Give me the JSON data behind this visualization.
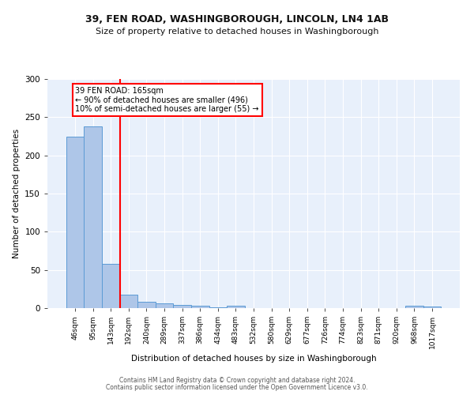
{
  "title1": "39, FEN ROAD, WASHINGBOROUGH, LINCOLN, LN4 1AB",
  "title2": "Size of property relative to detached houses in Washingborough",
  "xlabel": "Distribution of detached houses by size in Washingborough",
  "ylabel": "Number of detached properties",
  "bin_labels": [
    "46sqm",
    "95sqm",
    "143sqm",
    "192sqm",
    "240sqm",
    "289sqm",
    "337sqm",
    "386sqm",
    "434sqm",
    "483sqm",
    "532sqm",
    "580sqm",
    "629sqm",
    "677sqm",
    "726sqm",
    "774sqm",
    "823sqm",
    "871sqm",
    "920sqm",
    "968sqm",
    "1017sqm"
  ],
  "bar_heights": [
    225,
    238,
    58,
    18,
    8,
    6,
    4,
    3,
    1,
    3,
    0,
    0,
    0,
    0,
    0,
    0,
    0,
    0,
    0,
    3,
    2
  ],
  "bar_color": "#aec6e8",
  "bar_edgecolor": "#5b9bd5",
  "red_line_x": 2.5,
  "annotation_line1": "39 FEN ROAD: 165sqm",
  "annotation_line2": "← 90% of detached houses are smaller (496)",
  "annotation_line3": "10% of semi-detached houses are larger (55) →",
  "ylim": [
    0,
    300
  ],
  "yticks": [
    0,
    50,
    100,
    150,
    200,
    250,
    300
  ],
  "background_color": "#e8f0fb",
  "footer_line1": "Contains HM Land Registry data © Crown copyright and database right 2024.",
  "footer_line2": "Contains public sector information licensed under the Open Government Licence v3.0."
}
